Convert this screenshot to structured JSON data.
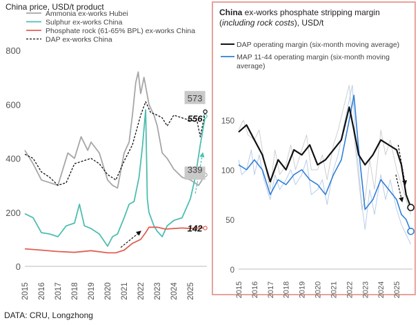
{
  "footer": "DATA: CRU, Longzhong",
  "chart_data": [
    {
      "type": "line",
      "title": "China price, USD/t product",
      "ylim": [
        0,
        800
      ],
      "y_ticks": [
        0,
        200,
        400,
        600,
        800
      ],
      "x_tick_labels": [
        "2015",
        "2016",
        "2017",
        "2018",
        "2019",
        "2020",
        "2021",
        "2022",
        "2023",
        "2024",
        "2025"
      ],
      "x_range": [
        2015,
        2026
      ],
      "grid": false,
      "legend": "top-left",
      "annotations": [
        {
          "text": "573",
          "x": 2025.9,
          "y": 573,
          "style": "gray-box"
        },
        {
          "text": "556",
          "x": 2025.9,
          "y": 556,
          "style": "bold-italic"
        },
        {
          "text": "339",
          "x": 2025.9,
          "y": 339,
          "style": "gray-box"
        },
        {
          "text": "142",
          "x": 2025.9,
          "y": 142,
          "style": "bold-italic"
        }
      ],
      "series": [
        {
          "name": "Ammonia ex-works Hubei",
          "color": "#a6a6a6",
          "style": "solid",
          "x": [
            2015.0,
            2015.5,
            2016.0,
            2016.5,
            2017.0,
            2017.3,
            2017.6,
            2018.0,
            2018.4,
            2018.8,
            2019.0,
            2019.5,
            2020.0,
            2020.3,
            2020.6,
            2021.0,
            2021.3,
            2021.5,
            2021.7,
            2021.85,
            2022.0,
            2022.2,
            2022.5,
            2022.8,
            2023.0,
            2023.3,
            2023.6,
            2024.0,
            2024.5,
            2025.0,
            2025.5,
            2025.9
          ],
          "values": [
            430,
            380,
            320,
            310,
            300,
            360,
            420,
            400,
            480,
            430,
            460,
            420,
            320,
            300,
            290,
            420,
            460,
            560,
            680,
            720,
            640,
            700,
            600,
            560,
            520,
            420,
            400,
            360,
            330,
            320,
            300,
            339
          ]
        },
        {
          "name": "Sulphur ex-works China",
          "color": "#4dbdb0",
          "style": "solid",
          "x": [
            2015.0,
            2015.5,
            2016.0,
            2016.5,
            2017.0,
            2017.5,
            2018.0,
            2018.3,
            2018.6,
            2019.0,
            2019.5,
            2020.0,
            2020.3,
            2020.6,
            2021.0,
            2021.3,
            2021.6,
            2021.9,
            2022.1,
            2022.3,
            2022.4,
            2022.5,
            2022.8,
            2023.0,
            2023.3,
            2023.6,
            2024.0,
            2024.5,
            2025.0,
            2025.3,
            2025.6,
            2025.9
          ],
          "values": [
            195,
            180,
            125,
            120,
            110,
            150,
            160,
            230,
            150,
            140,
            120,
            75,
            110,
            120,
            180,
            230,
            240,
            330,
            440,
            580,
            250,
            200,
            150,
            130,
            110,
            150,
            170,
            180,
            250,
            330,
            450,
            556
          ]
        },
        {
          "name": "Phosphate rock (61-65% BPL) ex-works China",
          "color": "#e05f53",
          "style": "solid",
          "x": [
            2015.0,
            2016.0,
            2017.0,
            2018.0,
            2019.0,
            2020.0,
            2020.5,
            2021.0,
            2021.5,
            2022.0,
            2022.3,
            2022.5,
            2023.0,
            2023.5,
            2024.0,
            2024.5,
            2025.0,
            2025.5,
            2025.9
          ],
          "values": [
            65,
            60,
            55,
            52,
            58,
            50,
            50,
            60,
            85,
            100,
            125,
            145,
            145,
            138,
            140,
            142,
            140,
            142,
            142
          ]
        },
        {
          "name": "DAP ex-works China",
          "color": "#111111",
          "style": "dashed",
          "x": [
            2015.0,
            2015.5,
            2016.0,
            2016.5,
            2017.0,
            2017.5,
            2018.0,
            2018.5,
            2019.0,
            2019.5,
            2020.0,
            2020.5,
            2021.0,
            2021.5,
            2022.0,
            2022.3,
            2022.6,
            2023.0,
            2023.3,
            2023.6,
            2024.0,
            2024.5,
            2025.0,
            2025.4,
            2025.6,
            2025.9
          ],
          "values": [
            415,
            400,
            350,
            330,
            300,
            310,
            380,
            390,
            400,
            380,
            340,
            320,
            390,
            450,
            560,
            610,
            570,
            560,
            550,
            520,
            560,
            550,
            540,
            540,
            480,
            573
          ]
        }
      ]
    },
    {
      "type": "line",
      "title_bold": "China",
      "title_rest": " ex-works phosphate stripping margin",
      "subtitle_italic": "including rock costs",
      "subtitle_rest": "), USD/t",
      "ylim": [
        0,
        200
      ],
      "y_ticks": [
        0,
        50,
        100,
        150
      ],
      "x_tick_labels": [
        "2015",
        "2016",
        "2017",
        "2018",
        "2019",
        "2020",
        "2021",
        "2022",
        "2023",
        "2024",
        "2025"
      ],
      "x_range": [
        2015,
        2026
      ],
      "grid": false,
      "legend": "top-left",
      "series": [
        {
          "name": "DAP operating margin (six-month moving average)",
          "color": "#111111",
          "x": [
            2015.0,
            2015.5,
            2016.0,
            2016.5,
            2017.0,
            2017.5,
            2018.0,
            2018.5,
            2019.0,
            2019.5,
            2020.0,
            2020.5,
            2021.0,
            2021.5,
            2022.0,
            2022.3,
            2022.6,
            2023.0,
            2023.5,
            2024.0,
            2024.5,
            2025.0,
            2025.3,
            2025.6,
            2025.9
          ],
          "values": [
            138,
            145,
            130,
            115,
            88,
            110,
            100,
            120,
            115,
            125,
            105,
            110,
            120,
            130,
            163,
            140,
            115,
            105,
            115,
            130,
            125,
            120,
            105,
            75,
            62
          ]
        },
        {
          "name": "MAP 11-44 operating margin (six-month moving average)",
          "color": "#2f7ed8",
          "x": [
            2015.0,
            2015.5,
            2016.0,
            2016.5,
            2017.0,
            2017.5,
            2018.0,
            2018.5,
            2019.0,
            2019.5,
            2020.0,
            2020.5,
            2021.0,
            2021.5,
            2022.0,
            2022.3,
            2022.6,
            2023.0,
            2023.5,
            2024.0,
            2024.5,
            2025.0,
            2025.3,
            2025.6,
            2025.9
          ],
          "values": [
            105,
            100,
            110,
            100,
            75,
            90,
            85,
            95,
            100,
            90,
            85,
            75,
            95,
            110,
            150,
            175,
            120,
            60,
            70,
            90,
            80,
            70,
            55,
            50,
            38
          ]
        },
        {
          "name": "",
          "color": "#b8cdea",
          "x": [
            2015.0,
            2015.2,
            2015.5,
            2015.8,
            2016.0,
            2016.3,
            2016.6,
            2017.0,
            2017.3,
            2017.6,
            2018.0,
            2018.3,
            2018.6,
            2019.0,
            2019.3,
            2019.6,
            2020.0,
            2020.3,
            2020.6,
            2021.0,
            2021.3,
            2021.6,
            2022.0,
            2022.2,
            2022.4,
            2022.6,
            2022.8,
            2023.0,
            2023.3,
            2023.6,
            2024.0,
            2024.3,
            2024.6,
            2025.0,
            2025.3,
            2025.6,
            2025.9
          ],
          "values": [
            110,
            95,
            100,
            120,
            95,
            115,
            90,
            70,
            95,
            80,
            90,
            100,
            85,
            95,
            110,
            75,
            80,
            90,
            65,
            100,
            115,
            140,
            170,
            185,
            130,
            100,
            65,
            40,
            80,
            55,
            95,
            70,
            90,
            60,
            45,
            35,
            25
          ]
        },
        {
          "name": "",
          "color": "#cfcfcf",
          "x": [
            2015.0,
            2015.3,
            2015.6,
            2016.0,
            2016.3,
            2016.6,
            2017.0,
            2017.3,
            2017.6,
            2018.0,
            2018.3,
            2018.6,
            2019.0,
            2019.3,
            2019.6,
            2020.0,
            2020.3,
            2020.6,
            2021.0,
            2021.3,
            2021.6,
            2022.0,
            2022.2,
            2022.4,
            2022.6,
            2022.8,
            2023.0,
            2023.3,
            2023.6,
            2024.0,
            2024.3,
            2024.6,
            2025.0,
            2025.3,
            2025.6,
            2025.9
          ],
          "values": [
            140,
            150,
            135,
            130,
            140,
            110,
            80,
            120,
            95,
            105,
            125,
            100,
            120,
            135,
            100,
            100,
            115,
            90,
            125,
            140,
            160,
            185,
            150,
            120,
            90,
            60,
            70,
            110,
            80,
            140,
            115,
            130,
            100,
            85,
            70,
            55
          ]
        }
      ]
    }
  ]
}
